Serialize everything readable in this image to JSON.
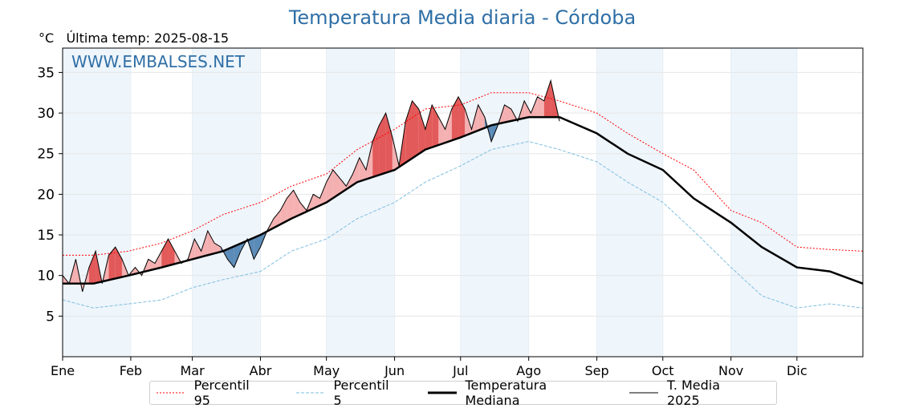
{
  "chart_data": {
    "type": "line",
    "title": "Temperatura Media diaria - Córdoba",
    "unit_label": "°C",
    "subtitle": "Última temp: 2025-08-15",
    "watermark": "WWW.EMBALSES.NET",
    "ylim": [
      0,
      38
    ],
    "yticks": [
      5,
      10,
      15,
      20,
      25,
      30,
      35
    ],
    "x_day_range": [
      1,
      365
    ],
    "month_ticks": [
      {
        "label": "Ene",
        "day": 1
      },
      {
        "label": "Feb",
        "day": 32
      },
      {
        "label": "Mar",
        "day": 60
      },
      {
        "label": "Abr",
        "day": 91
      },
      {
        "label": "May",
        "day": 121
      },
      {
        "label": "Jun",
        "day": 152
      },
      {
        "label": "Jul",
        "day": 182
      },
      {
        "label": "Ago",
        "day": 213
      },
      {
        "label": "Sep",
        "day": 244
      },
      {
        "label": "Oct",
        "day": 274
      },
      {
        "label": "Nov",
        "day": 305
      },
      {
        "label": "Dic",
        "day": 335
      }
    ],
    "shaded_months": [
      "Ene",
      "Mar",
      "May",
      "Jul",
      "Sep",
      "Nov"
    ],
    "grid": true,
    "legend_position": "bottom",
    "colors": {
      "p95": "#ff0000",
      "p5": "#7fbfdf",
      "median": "#000000",
      "year": "#000000",
      "above": "#f4a8a8",
      "above_dark": "#e04848",
      "below": "#4a7fb0",
      "shade": "#eef5fb"
    },
    "series": [
      {
        "name": "Percentil 95",
        "days": [
          1,
          15,
          31,
          46,
          60,
          74,
          91,
          105,
          121,
          135,
          152,
          166,
          182,
          196,
          213,
          227,
          244,
          258,
          274,
          288,
          305,
          319,
          335,
          350,
          365
        ],
        "values": [
          12.5,
          12.5,
          13.0,
          14.0,
          15.5,
          17.5,
          19.0,
          21.0,
          22.5,
          25.5,
          28.0,
          30.5,
          31.0,
          32.5,
          32.5,
          31.5,
          30.0,
          27.5,
          25.0,
          23.0,
          18.0,
          16.5,
          13.5,
          13.2,
          13.0
        ]
      },
      {
        "name": "Percentil 5",
        "days": [
          1,
          15,
          31,
          46,
          60,
          74,
          91,
          105,
          121,
          135,
          152,
          166,
          182,
          196,
          213,
          227,
          244,
          258,
          274,
          288,
          305,
          319,
          335,
          350,
          365
        ],
        "values": [
          7.0,
          6.0,
          6.5,
          7.0,
          8.5,
          9.5,
          10.5,
          13.0,
          14.5,
          17.0,
          19.0,
          21.5,
          23.5,
          25.5,
          26.5,
          25.5,
          24.0,
          21.5,
          19.0,
          15.5,
          11.0,
          7.5,
          6.0,
          6.5,
          6.0
        ]
      },
      {
        "name": "Temperatura Mediana",
        "days": [
          1,
          15,
          31,
          46,
          60,
          74,
          91,
          105,
          121,
          135,
          152,
          166,
          182,
          196,
          213,
          227,
          244,
          258,
          274,
          288,
          305,
          319,
          335,
          350,
          365
        ],
        "values": [
          9.0,
          9.0,
          10.0,
          11.0,
          12.0,
          13.0,
          15.0,
          17.0,
          19.0,
          21.5,
          23.0,
          25.5,
          27.0,
          28.5,
          29.5,
          29.5,
          27.5,
          25.0,
          23.0,
          19.5,
          16.5,
          13.5,
          11.0,
          10.5,
          9.0
        ]
      },
      {
        "name": "T. Media 2025",
        "days": [
          1,
          4,
          7,
          10,
          13,
          16,
          19,
          22,
          25,
          28,
          31,
          34,
          37,
          40,
          43,
          46,
          49,
          52,
          55,
          58,
          61,
          64,
          67,
          70,
          73,
          76,
          79,
          82,
          85,
          88,
          91,
          94,
          97,
          100,
          103,
          106,
          109,
          112,
          115,
          118,
          121,
          124,
          127,
          130,
          133,
          136,
          139,
          142,
          145,
          148,
          151,
          154,
          157,
          160,
          163,
          166,
          169,
          172,
          175,
          178,
          181,
          184,
          187,
          190,
          193,
          196,
          199,
          202,
          205,
          208,
          211,
          214,
          217,
          220,
          223,
          227
        ],
        "values": [
          10.0,
          9.0,
          12.0,
          8.0,
          11.0,
          13.0,
          9.0,
          12.5,
          13.5,
          12.0,
          10.0,
          11.0,
          10.0,
          12.0,
          11.5,
          13.0,
          14.5,
          13.0,
          11.5,
          12.0,
          14.5,
          13.0,
          15.5,
          14.0,
          13.5,
          12.0,
          11.0,
          13.0,
          14.5,
          12.0,
          13.5,
          15.5,
          17.0,
          18.0,
          19.5,
          20.5,
          19.0,
          18.0,
          20.0,
          19.5,
          21.5,
          23.0,
          22.0,
          21.0,
          22.5,
          24.5,
          23.0,
          26.5,
          28.5,
          30.0,
          27.0,
          23.5,
          29.0,
          31.5,
          30.5,
          28.0,
          31.0,
          29.5,
          28.0,
          30.5,
          32.0,
          30.5,
          28.0,
          31.0,
          29.5,
          26.5,
          28.5,
          31.0,
          30.5,
          29.0,
          31.5,
          30.0,
          32.0,
          31.5,
          34.0,
          29.0
        ]
      }
    ]
  },
  "legend": [
    {
      "key": "p95",
      "label": "Percentil 95"
    },
    {
      "key": "p5",
      "label": "Percentil 5"
    },
    {
      "key": "median",
      "label": "Temperatura Mediana"
    },
    {
      "key": "year",
      "label": "T. Media 2025"
    }
  ]
}
